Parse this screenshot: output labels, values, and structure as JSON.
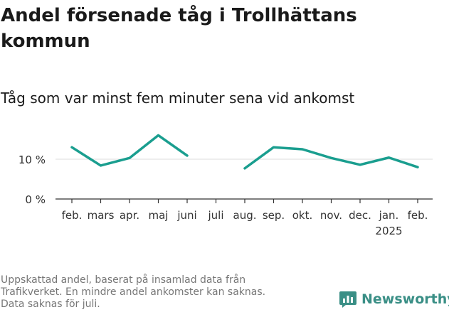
{
  "title": "Andel försenade tåg i Trollhättans kommun",
  "subtitle": "Tåg som var minst fem minuter sena vid ankomst",
  "footnote_lines": [
    "Uppskattad andel, baserat på insamlad data från",
    "Trafikverket. En mindre andel ankomster kan saknas.",
    "Data saknas för juli."
  ],
  "brand": {
    "name": "Newsworthy",
    "icon": "newsworthy-logo-icon"
  },
  "colors": {
    "line": "#1a9e8f",
    "grid": "#dddddd",
    "axis": "#333333",
    "brand": "#3a8f86"
  },
  "chart_data": {
    "type": "line",
    "categories": [
      "feb.",
      "mars",
      "apr.",
      "maj",
      "juni",
      "juli",
      "aug.",
      "sep.",
      "okt.",
      "nov.",
      "dec.",
      "jan.",
      "feb."
    ],
    "category_sublabels": {
      "11": "2025"
    },
    "series": [
      {
        "values": [
          13.0,
          8.4,
          10.3,
          16.0,
          10.9,
          null,
          7.7,
          13.0,
          12.5,
          10.3,
          8.6,
          10.4,
          8.0
        ]
      }
    ],
    "yticks": [
      0,
      10
    ],
    "ytick_labels": [
      "0 %",
      "10 %"
    ],
    "ylim": [
      0,
      18
    ],
    "grid": true
  }
}
